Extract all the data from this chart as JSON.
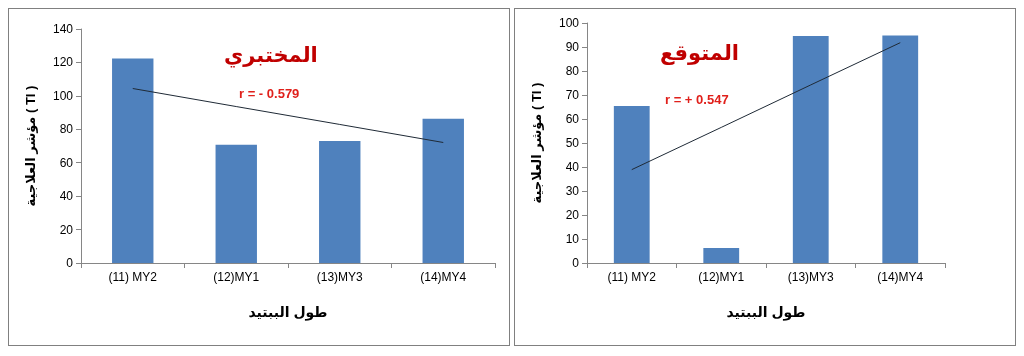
{
  "chart_data": [
    {
      "type": "bar",
      "title": "المختبري",
      "xlabel": "طول الببتيد",
      "ylabel": "مؤشر العلاجية ( TI )",
      "categories": [
        "(11) MY2",
        "(12)MY1",
        "(13)MY3",
        "(14)MY4"
      ],
      "series": [
        {
          "color": "#4f81bd",
          "values": [
            122.3,
            70.8,
            73,
            86.3
          ]
        },
        {
          "type": "line",
          "color": "#1f2a36",
          "values": [
            104.4,
            93.6,
            82.9,
            72.1
          ]
        }
      ],
      "ylim": [
        0,
        140
      ],
      "yticks": [
        0,
        20,
        40,
        60,
        80,
        100,
        120,
        140
      ],
      "grid": false,
      "marker": "none",
      "line_style": "solid",
      "annotations": [
        "r = - 0.579"
      ]
    },
    {
      "type": "bar",
      "title": "المتوقع",
      "xlabel": "طول الببتيد",
      "ylabel": "مؤشر العلاجية ( TI )",
      "categories": [
        "(11) MY2",
        "(12)MY1",
        "(13)MY3",
        "(14)MY4"
      ],
      "series": [
        {
          "color": "#4f81bd",
          "values": [
            65.4,
            6.2,
            94.6,
            94.8
          ]
        },
        {
          "type": "line",
          "color": "#1f2a36",
          "values": [
            38.9,
            56.5,
            74.2,
            91.8
          ]
        }
      ],
      "ylim": [
        0,
        100
      ],
      "yticks": [
        0,
        10,
        20,
        30,
        40,
        50,
        60,
        70,
        80,
        90,
        100
      ],
      "grid": false,
      "marker": "none",
      "line_style": "solid",
      "annotations": [
        "r = + 0.547"
      ]
    }
  ]
}
